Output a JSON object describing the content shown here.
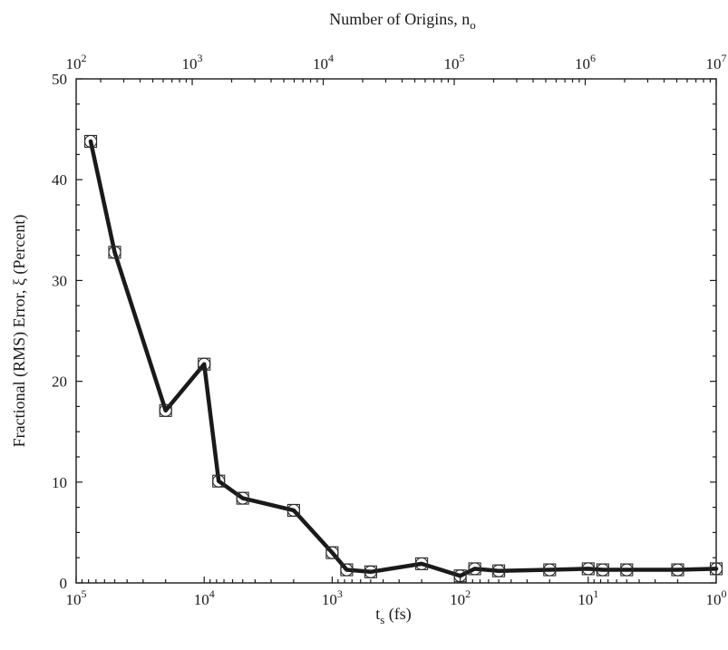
{
  "chart_data": {
    "type": "line",
    "title": "",
    "top_axis": {
      "label": "Number of Origins, n",
      "label_sub": "o",
      "scale": "log",
      "range": [
        130,
        10000000
      ],
      "tick_values": [
        100,
        1000,
        10000,
        100000,
        1000000,
        10000000
      ],
      "tick_labels": [
        {
          "base": "10",
          "exp": "2"
        },
        {
          "base": "10",
          "exp": "3"
        },
        {
          "base": "10",
          "exp": "4"
        },
        {
          "base": "10",
          "exp": "5"
        },
        {
          "base": "10",
          "exp": "6"
        },
        {
          "base": "10",
          "exp": "7"
        }
      ]
    },
    "x_axis": {
      "label_pre": "t",
      "label_sub": "s",
      "label_post": " (fs)",
      "scale": "log",
      "reversed": true,
      "range": [
        100000,
        1
      ],
      "tick_values": [
        100000,
        10000,
        1000,
        100,
        10,
        1
      ],
      "tick_labels": [
        {
          "base": "10",
          "exp": "5"
        },
        {
          "base": "10",
          "exp": "4"
        },
        {
          "base": "10",
          "exp": "3"
        },
        {
          "base": "10",
          "exp": "2"
        },
        {
          "base": "10",
          "exp": "1"
        },
        {
          "base": "10",
          "exp": "0"
        }
      ]
    },
    "y_axis": {
      "label": "Fractional (RMS) Error, ξ (Percent)",
      "range": [
        0,
        50
      ],
      "tick_values": [
        0,
        10,
        20,
        30,
        40,
        50
      ],
      "tick_labels": [
        "0",
        "10",
        "20",
        "30",
        "40",
        "50"
      ]
    },
    "grid": false,
    "legend": "none",
    "series": [
      {
        "marker": "circle+square",
        "line_color": "#1a1a1a",
        "points": [
          {
            "x": 77000,
            "y": 43.8
          },
          {
            "x": 50000,
            "y": 32.8
          },
          {
            "x": 20000,
            "y": 17.1
          },
          {
            "x": 10000,
            "y": 21.7
          },
          {
            "x": 7700,
            "y": 10.1
          },
          {
            "x": 5000,
            "y": 8.4
          },
          {
            "x": 2000,
            "y": 7.2
          },
          {
            "x": 1000,
            "y": 3.0
          },
          {
            "x": 770,
            "y": 1.3
          },
          {
            "x": 500,
            "y": 1.1
          },
          {
            "x": 200,
            "y": 1.9
          },
          {
            "x": 100,
            "y": 0.7
          },
          {
            "x": 77,
            "y": 1.4
          },
          {
            "x": 50,
            "y": 1.2
          },
          {
            "x": 20,
            "y": 1.3
          },
          {
            "x": 10,
            "y": 1.4
          },
          {
            "x": 7.7,
            "y": 1.3
          },
          {
            "x": 5,
            "y": 1.3
          },
          {
            "x": 2,
            "y": 1.3
          },
          {
            "x": 1,
            "y": 1.4
          }
        ]
      }
    ]
  }
}
